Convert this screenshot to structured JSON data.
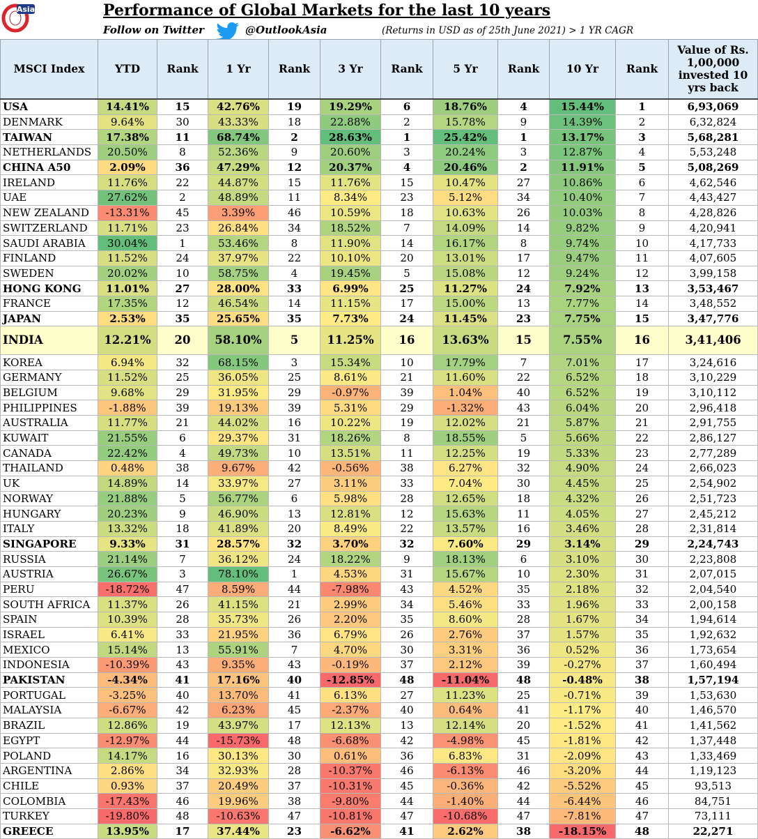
{
  "header": {
    "logo_text": "Asia",
    "title": "Performance of Global Markets for the last 10 years",
    "follow_text": "Follow on Twitter",
    "handle": "@OutlookAsia",
    "note": "(Returns in USD as of 25th June 2021) > 1 YR CAGR"
  },
  "table": {
    "columns": [
      "MSCI Index",
      "YTD",
      "Rank",
      "1 Yr",
      "Rank",
      "3 Yr",
      "Rank",
      "5 Yr",
      "Rank",
      "10 Yr",
      "Rank",
      "Value of  Rs. 1,00,000 invested 10 yrs back"
    ],
    "rows": [
      [
        "USA",
        "14.41%",
        "15",
        "42.76%",
        "19",
        "19.29%",
        "6",
        "18.76%",
        "4",
        "15.44%",
        "1",
        "6,93,069"
      ],
      [
        "DENMARK",
        "9.64%",
        "30",
        "43.33%",
        "18",
        "22.88%",
        "2",
        "15.78%",
        "9",
        "14.39%",
        "2",
        "6,32,824"
      ],
      [
        "TAIWAN",
        "17.38%",
        "11",
        "68.74%",
        "2",
        "28.63%",
        "1",
        "25.42%",
        "1",
        "13.17%",
        "3",
        "5,68,281"
      ],
      [
        "NETHERLANDS",
        "20.50%",
        "8",
        "52.36%",
        "9",
        "20.60%",
        "3",
        "20.24%",
        "3",
        "12.87%",
        "4",
        "5,53,248"
      ],
      [
        "CHINA A50",
        "2.09%",
        "36",
        "47.29%",
        "12",
        "20.37%",
        "4",
        "20.46%",
        "2",
        "11.91%",
        "5",
        "5,08,269"
      ],
      [
        "IRELAND",
        "11.76%",
        "22",
        "44.87%",
        "15",
        "11.76%",
        "15",
        "10.47%",
        "27",
        "10.86%",
        "6",
        "4,62,546"
      ],
      [
        "UAE",
        "27.62%",
        "2",
        "48.89%",
        "11",
        "8.34%",
        "23",
        "5.12%",
        "34",
        "10.40%",
        "7",
        "4,43,427"
      ],
      [
        "NEW ZEALAND",
        "-13.31%",
        "45",
        "3.39%",
        "46",
        "10.59%",
        "18",
        "10.63%",
        "26",
        "10.03%",
        "8",
        "4,28,826"
      ],
      [
        "SWITZERLAND",
        "11.71%",
        "23",
        "26.84%",
        "34",
        "18.52%",
        "7",
        "14.09%",
        "14",
        "9.82%",
        "9",
        "4,20,941"
      ],
      [
        "SAUDI ARABIA",
        "30.04%",
        "1",
        "53.46%",
        "8",
        "11.90%",
        "14",
        "16.17%",
        "8",
        "9.74%",
        "10",
        "4,17,733"
      ],
      [
        "FINLAND",
        "11.52%",
        "24",
        "37.97%",
        "22",
        "10.10%",
        "20",
        "13.01%",
        "17",
        "9.47%",
        "11",
        "4,07,605"
      ],
      [
        "SWEDEN",
        "20.02%",
        "10",
        "58.75%",
        "4",
        "19.45%",
        "5",
        "15.08%",
        "12",
        "9.24%",
        "12",
        "3,99,158"
      ],
      [
        "HONG KONG",
        "11.01%",
        "27",
        "28.00%",
        "33",
        "6.99%",
        "25",
        "11.27%",
        "24",
        "7.92%",
        "13",
        "3,53,467"
      ],
      [
        "FRANCE",
        "17.35%",
        "12",
        "46.54%",
        "14",
        "11.15%",
        "17",
        "15.00%",
        "13",
        "7.77%",
        "14",
        "3,48,552"
      ],
      [
        "JAPAN",
        "2.53%",
        "35",
        "25.65%",
        "35",
        "7.73%",
        "24",
        "11.45%",
        "23",
        "7.75%",
        "15",
        "3,47,776"
      ],
      [
        "INDIA",
        "12.21%",
        "20",
        "58.10%",
        "5",
        "11.25%",
        "16",
        "13.63%",
        "15",
        "7.55%",
        "16",
        "3,41,406"
      ],
      [
        "KOREA",
        "6.94%",
        "32",
        "68.15%",
        "3",
        "15.34%",
        "10",
        "17.79%",
        "7",
        "7.01%",
        "17",
        "3,24,616"
      ],
      [
        "GERMANY",
        "11.52%",
        "25",
        "36.05%",
        "25",
        "8.61%",
        "21",
        "11.60%",
        "22",
        "6.52%",
        "18",
        "3,10,229"
      ],
      [
        "BELGIUM",
        "9.68%",
        "29",
        "31.95%",
        "29",
        "-0.97%",
        "39",
        "1.04%",
        "40",
        "6.52%",
        "19",
        "3,10,112"
      ],
      [
        "PHILIPPINES",
        "-1.88%",
        "39",
        "19.13%",
        "39",
        "5.31%",
        "29",
        "-1.32%",
        "43",
        "6.04%",
        "20",
        "2,96,418"
      ],
      [
        "AUSTRALIA",
        "11.77%",
        "21",
        "44.02%",
        "16",
        "10.22%",
        "19",
        "12.02%",
        "21",
        "5.87%",
        "21",
        "2,91,755"
      ],
      [
        "KUWAIT",
        "21.55%",
        "6",
        "29.37%",
        "31",
        "18.26%",
        "8",
        "18.55%",
        "5",
        "5.66%",
        "22",
        "2,86,127"
      ],
      [
        "CANADA",
        "22.42%",
        "4",
        "49.73%",
        "10",
        "13.51%",
        "11",
        "12.25%",
        "19",
        "5.33%",
        "23",
        "2,77,289"
      ],
      [
        "THAILAND",
        "0.48%",
        "38",
        "9.67%",
        "42",
        "-0.56%",
        "38",
        "6.27%",
        "32",
        "4.90%",
        "24",
        "2,66,023"
      ],
      [
        "UK",
        "14.89%",
        "14",
        "33.97%",
        "27",
        "3.11%",
        "33",
        "7.04%",
        "30",
        "4.45%",
        "25",
        "2,54,902"
      ],
      [
        "NORWAY",
        "21.88%",
        "5",
        "56.77%",
        "6",
        "5.98%",
        "28",
        "12.65%",
        "18",
        "4.32%",
        "26",
        "2,51,723"
      ],
      [
        "HUNGARY",
        "20.23%",
        "9",
        "46.90%",
        "13",
        "12.81%",
        "12",
        "15.63%",
        "11",
        "4.05%",
        "27",
        "2,45,212"
      ],
      [
        "ITALY",
        "13.32%",
        "18",
        "41.89%",
        "20",
        "8.49%",
        "22",
        "13.57%",
        "16",
        "3.46%",
        "28",
        "2,31,814"
      ],
      [
        "SINGAPORE",
        "9.33%",
        "31",
        "28.57%",
        "32",
        "3.70%",
        "32",
        "7.60%",
        "29",
        "3.14%",
        "29",
        "2,24,743"
      ],
      [
        "RUSSIA",
        "21.14%",
        "7",
        "36.12%",
        "24",
        "18.22%",
        "9",
        "18.13%",
        "6",
        "3.10%",
        "30",
        "2,23,808"
      ],
      [
        "AUSTRIA",
        "26.67%",
        "3",
        "78.10%",
        "1",
        "4.53%",
        "31",
        "15.67%",
        "10",
        "2.30%",
        "31",
        "2,07,015"
      ],
      [
        "PERU",
        "-18.72%",
        "47",
        "8.59%",
        "44",
        "-7.98%",
        "43",
        "4.52%",
        "35",
        "2.18%",
        "32",
        "2,04,540"
      ],
      [
        "SOUTH AFRICA",
        "11.37%",
        "26",
        "41.15%",
        "21",
        "2.99%",
        "34",
        "5.46%",
        "33",
        "1.96%",
        "33",
        "2,00,158"
      ],
      [
        "SPAIN",
        "10.39%",
        "28",
        "35.73%",
        "26",
        "2.20%",
        "35",
        "8.60%",
        "28",
        "1.67%",
        "34",
        "1,94,614"
      ],
      [
        "ISRAEL",
        "6.41%",
        "33",
        "21.95%",
        "36",
        "6.79%",
        "26",
        "2.76%",
        "37",
        "1.57%",
        "35",
        "1,92,632"
      ],
      [
        "MEXICO",
        "15.14%",
        "13",
        "55.91%",
        "7",
        "4.70%",
        "30",
        "3.31%",
        "36",
        "0.52%",
        "36",
        "1,73,654"
      ],
      [
        "INDONESIA",
        "-10.39%",
        "43",
        "9.35%",
        "43",
        "-0.19%",
        "37",
        "2.12%",
        "39",
        "-0.27%",
        "37",
        "1,60,494"
      ],
      [
        "PAKISTAN",
        "-4.34%",
        "41",
        "17.16%",
        "40",
        "-12.85%",
        "48",
        "-11.04%",
        "48",
        "-0.48%",
        "38",
        "1,57,194"
      ],
      [
        "PORTUGAL",
        "-3.25%",
        "40",
        "13.70%",
        "41",
        "6.13%",
        "27",
        "11.23%",
        "25",
        "-0.71%",
        "39",
        "1,53,630"
      ],
      [
        "MALAYSIA",
        "-6.67%",
        "42",
        "6.23%",
        "45",
        "-2.37%",
        "40",
        "0.64%",
        "41",
        "-1.17%",
        "40",
        "1,46,570"
      ],
      [
        "BRAZIL",
        "12.86%",
        "19",
        "43.97%",
        "17",
        "12.13%",
        "13",
        "12.14%",
        "20",
        "-1.52%",
        "41",
        "1,41,562"
      ],
      [
        "EGYPT",
        "-12.97%",
        "44",
        "-15.73%",
        "48",
        "-6.68%",
        "42",
        "-4.98%",
        "45",
        "-1.81%",
        "42",
        "1,37,448"
      ],
      [
        "POLAND",
        "14.17%",
        "16",
        "30.13%",
        "30",
        "0.61%",
        "36",
        "6.83%",
        "31",
        "-2.09%",
        "43",
        "1,33,469"
      ],
      [
        "ARGENTINA",
        "2.86%",
        "34",
        "32.93%",
        "28",
        "-10.37%",
        "46",
        "-6.13%",
        "46",
        "-3.20%",
        "44",
        "1,19,123"
      ],
      [
        "CHILE",
        "0.93%",
        "37",
        "20.49%",
        "37",
        "-10.31%",
        "45",
        "-0.36%",
        "42",
        "-5.52%",
        "45",
        "93,513"
      ],
      [
        "COLOMBIA",
        "-17.43%",
        "46",
        "19.96%",
        "38",
        "-9.80%",
        "44",
        "-1.40%",
        "44",
        "-6.44%",
        "46",
        "84,751"
      ],
      [
        "TURKEY",
        "-19.80%",
        "48",
        "-10.63%",
        "47",
        "-10.81%",
        "47",
        "-10.68%",
        "47",
        "-7.81%",
        "47",
        "73,111"
      ],
      [
        "GREECE",
        "13.95%",
        "17",
        "37.44%",
        "23",
        "-6.62%",
        "41",
        "2.62%",
        "38",
        "-18.15%",
        "48",
        "22,271"
      ]
    ],
    "bold_rows": [
      "USA",
      "TAIWAN",
      "CHINA A50",
      "HONG KONG",
      "JAPAN",
      "INDIA",
      "SINGAPORE",
      "PAKISTAN",
      "GREECE"
    ],
    "highlight_row": "INDIA"
  }
}
